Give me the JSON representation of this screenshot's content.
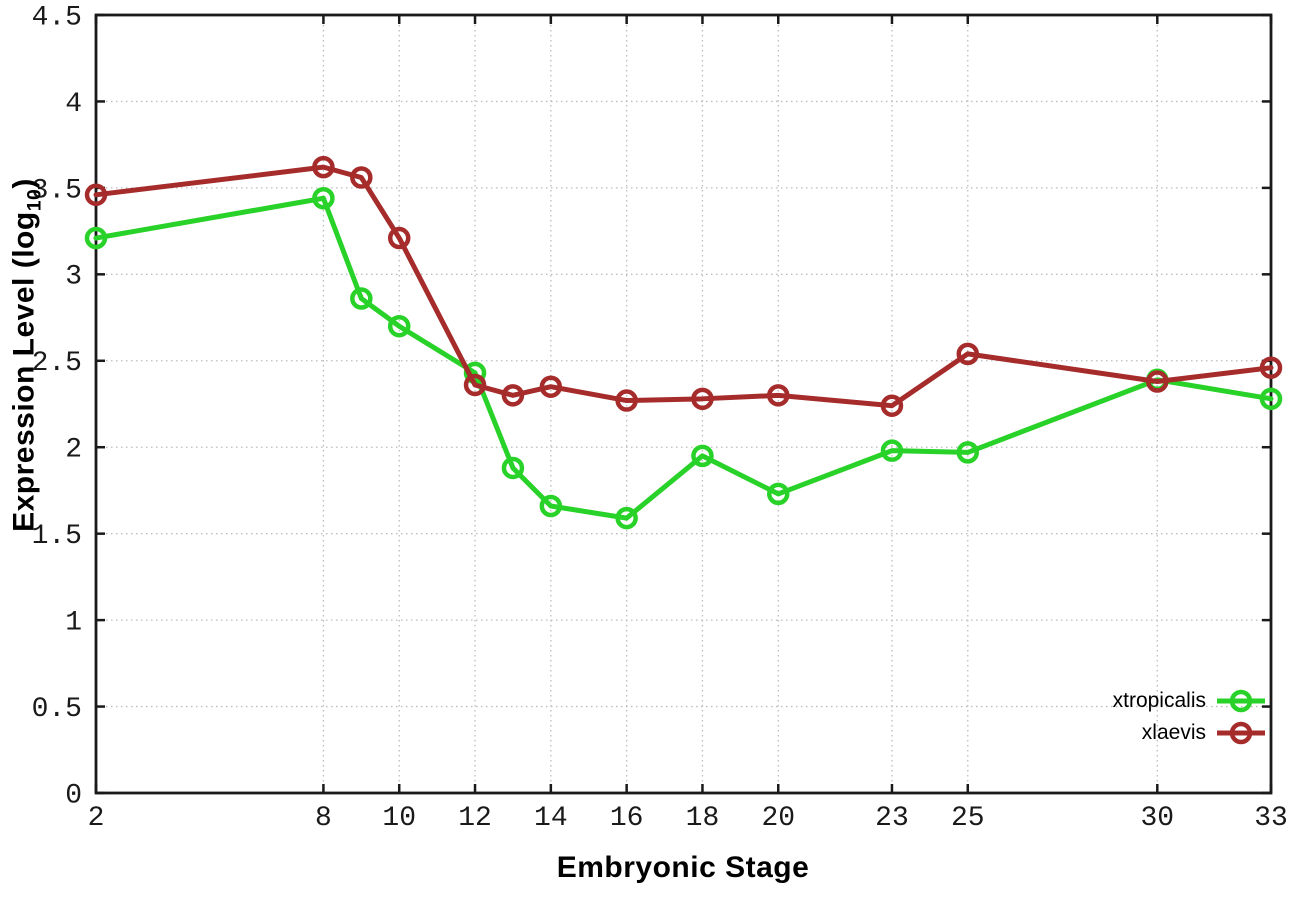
{
  "figure": {
    "xlabel": "Embryonic Stage",
    "ylabel_pre": "Expression Level (log",
    "ylabel_sub": "10",
    "ylabel_post": ")"
  },
  "chart_data": {
    "type": "line",
    "title": "",
    "xlabel": "Embryonic Stage",
    "ylabel": "Expression Level (log10)",
    "x": [
      2,
      8,
      9,
      10,
      12,
      13,
      14,
      16,
      18,
      20,
      23,
      25,
      30,
      33
    ],
    "series": [
      {
        "name": "xtropicalis",
        "color": "#28d228",
        "values": [
          3.21,
          3.44,
          2.86,
          2.7,
          2.43,
          1.88,
          1.66,
          1.59,
          1.95,
          1.73,
          1.98,
          1.97,
          2.39,
          2.28
        ]
      },
      {
        "name": "xlaevis",
        "color": "#a62c2c",
        "values": [
          3.46,
          3.62,
          3.56,
          3.21,
          2.36,
          2.3,
          2.35,
          2.27,
          2.28,
          2.3,
          2.24,
          2.54,
          2.38,
          2.46
        ]
      }
    ],
    "x_ticks": [
      2,
      8,
      10,
      12,
      14,
      16,
      18,
      20,
      23,
      25,
      30,
      33
    ],
    "y_ticks": [
      0,
      0.5,
      1,
      1.5,
      2,
      2.5,
      3,
      3.5,
      4,
      4.5
    ],
    "y_tick_labels": [
      "0",
      "0.5",
      "1",
      "1.5",
      "2",
      "2.5",
      "3",
      "3.5",
      "4",
      "4.5"
    ],
    "xlim": [
      2,
      33
    ],
    "ylim": [
      0,
      4.5
    ],
    "grid": true,
    "legend_position": "bottom-right",
    "marker": "open-circle",
    "grid_color": "#bcbcbc",
    "axis_color": "#1a1a1a",
    "tick_label_color": "#1a1a1a"
  }
}
